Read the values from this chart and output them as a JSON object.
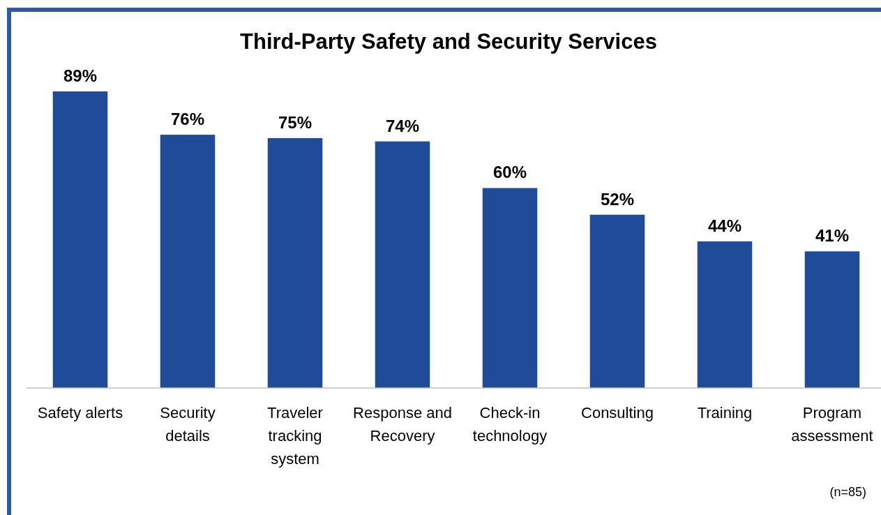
{
  "chart_data": {
    "type": "bar",
    "title": "Third-Party Safety and Security Services",
    "categories": [
      "Safety alerts",
      "Security details",
      "Traveler tracking system",
      "Response and Recovery",
      "Check-in technology",
      "Consulting",
      "Training",
      "Program assessment"
    ],
    "values": [
      89,
      76,
      75,
      74,
      60,
      52,
      44,
      41
    ],
    "value_labels": [
      "89%",
      "76%",
      "75%",
      "74%",
      "60%",
      "52%",
      "44%",
      "41%"
    ],
    "color": "#1f4b99",
    "annotations": [
      "(n=85)"
    ]
  }
}
